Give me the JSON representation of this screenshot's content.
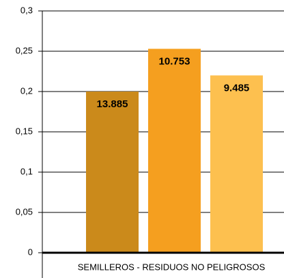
{
  "chart_data": {
    "type": "bar",
    "categories": [
      "SEMILLEROS - RESIDUOS NO PELIGROSOS"
    ],
    "series": [
      {
        "color": "#cb8a1b",
        "values": [
          0.2
        ]
      },
      {
        "color": "#f59f1f",
        "values": [
          0.253
        ]
      },
      {
        "color": "#fdc04f",
        "values": [
          0.22
        ]
      }
    ],
    "annotations": [
      "13.885",
      "10.753",
      "9.485"
    ],
    "ylim": [
      0,
      0.3
    ],
    "yticks": [
      0,
      {
        "value": 0.05,
        "label": "0,05"
      },
      {
        "value": 0.1,
        "label": "0,1"
      },
      {
        "value": 0.15,
        "label": "0,15"
      },
      {
        "value": 0.2,
        "label": "0,2"
      },
      {
        "value": 0.25,
        "label": "0,25"
      },
      {
        "value": 0.3,
        "label": "0,3"
      }
    ],
    "grid": true
  }
}
